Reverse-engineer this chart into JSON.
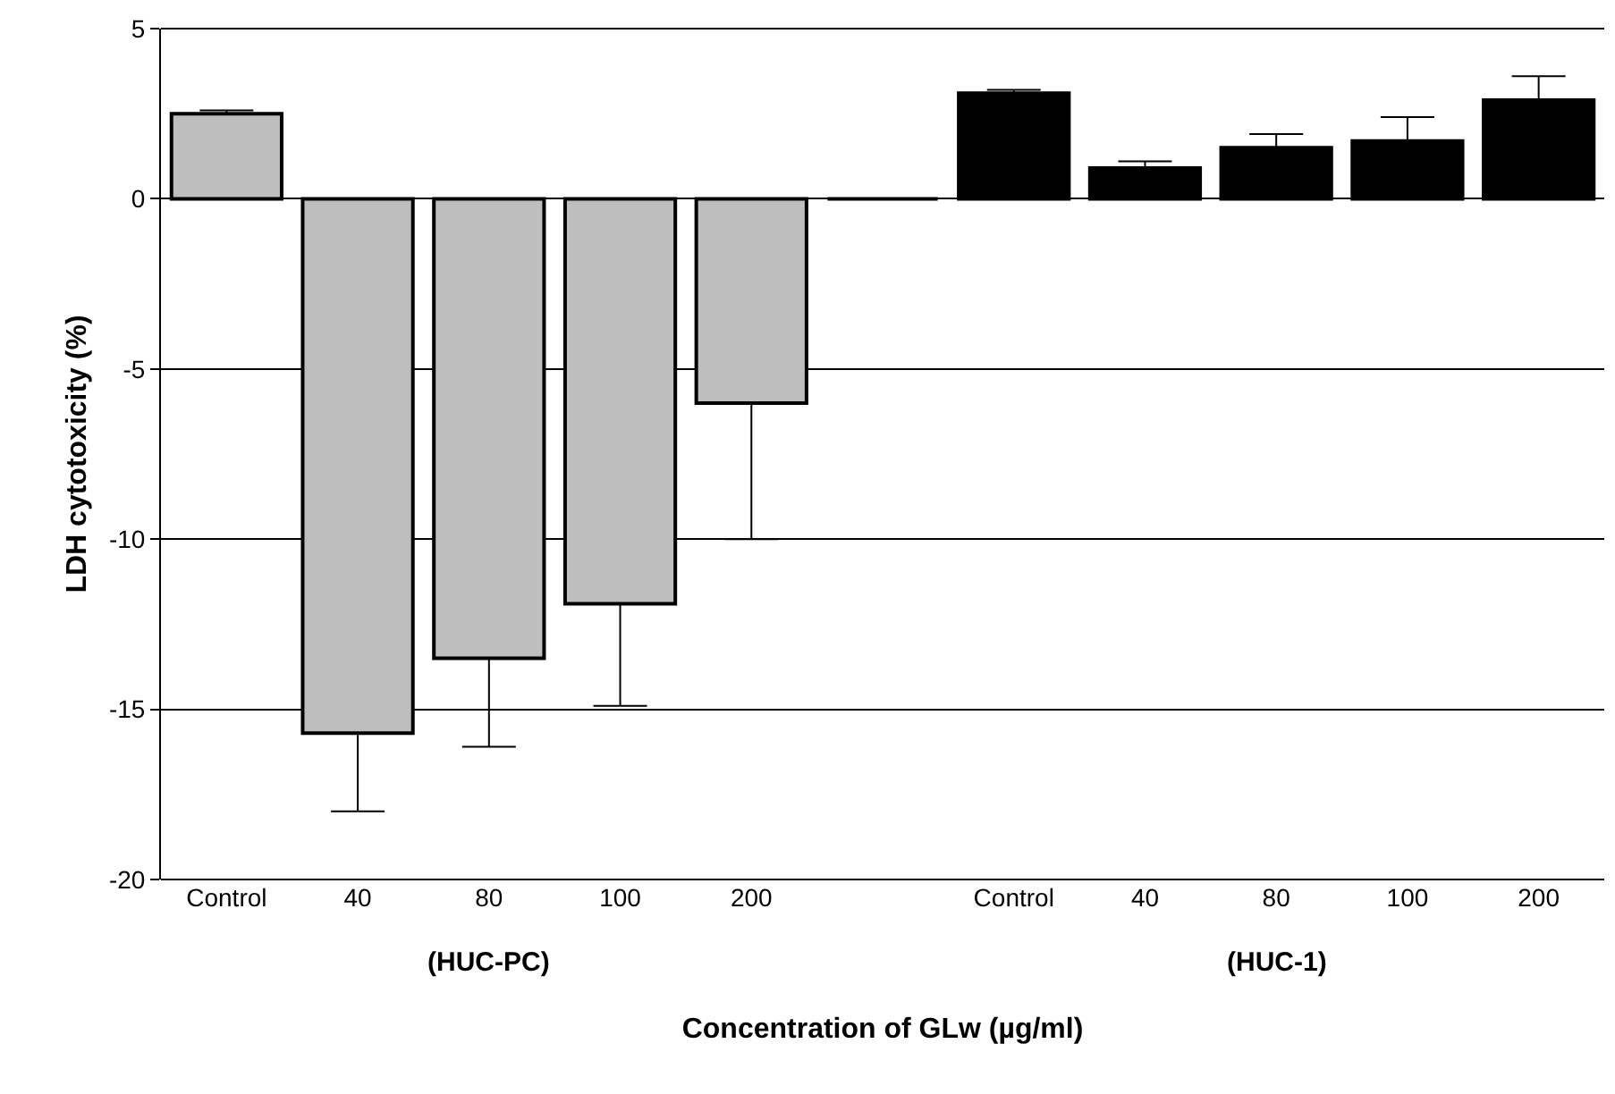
{
  "chart_data": {
    "type": "bar",
    "xlabel": "Concentration of GLw (µg/ml)",
    "ylabel": "LDH cytotoxicity (%)",
    "categories": [
      "Control",
      "40",
      "80",
      "100",
      "200",
      null,
      "Control",
      "40",
      "80",
      "100",
      "200"
    ],
    "values": [
      2.5,
      -15.7,
      -13.5,
      -11.9,
      -6.0,
      0,
      3.1,
      0.9,
      1.5,
      1.7,
      2.9
    ],
    "colors": [
      "#bebebe",
      "#bebebe",
      "#bebebe",
      "#bebebe",
      "#bebebe",
      "#000000",
      "#000000",
      "#000000",
      "#000000",
      "#000000",
      "#000000"
    ],
    "errors": [
      [
        2.5,
        2.6
      ],
      [
        -18.0,
        -15.7
      ],
      [
        -16.1,
        -13.5
      ],
      [
        -14.9,
        -11.9
      ],
      [
        -10.0,
        -6.0
      ],
      null,
      [
        3.1,
        3.2
      ],
      [
        0.9,
        1.1
      ],
      [
        1.5,
        1.9
      ],
      [
        1.7,
        2.4
      ],
      [
        2.9,
        3.6
      ]
    ],
    "ylim": [
      -20,
      5
    ],
    "yticks": [
      -20,
      -15,
      -10,
      -5,
      0,
      5
    ],
    "grid": "y",
    "annotations": [
      "(HUC-PC)",
      "(HUC-1)"
    ]
  }
}
